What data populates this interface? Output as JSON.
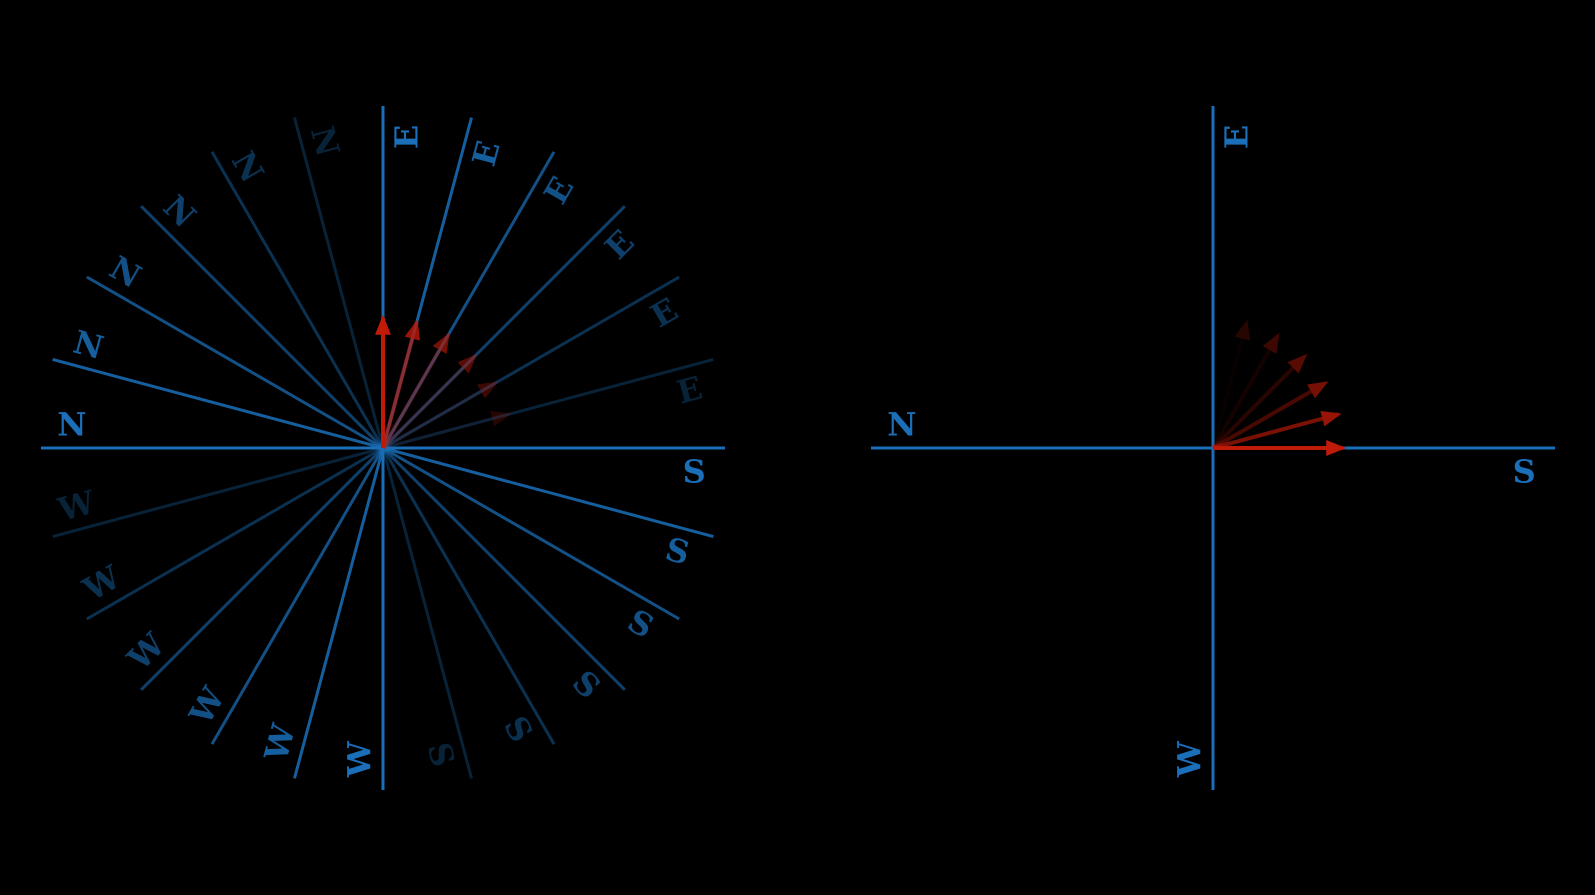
{
  "colors": {
    "background": "#000000",
    "axis": "#1a6fb8",
    "vector": "#c01a08"
  },
  "left_diagram": {
    "axes": [
      {
        "angle_deg": 0,
        "labels": [
          "E",
          "W"
        ],
        "opacity": 1.0
      },
      {
        "angle_deg": 15,
        "labels": [
          "E",
          "W"
        ],
        "opacity": 0.86
      },
      {
        "angle_deg": 30,
        "labels": [
          "E",
          "W"
        ],
        "opacity": 0.72
      },
      {
        "angle_deg": 45,
        "labels": [
          "E",
          "W"
        ],
        "opacity": 0.58
      },
      {
        "angle_deg": 60,
        "labels": [
          "E",
          "W"
        ],
        "opacity": 0.44
      },
      {
        "angle_deg": 75,
        "labels": [
          "E",
          "W"
        ],
        "opacity": 0.3
      },
      {
        "angle_deg": 90,
        "labels": [
          "S",
          "N"
        ],
        "opacity": 1.0
      },
      {
        "angle_deg": 105,
        "labels": [
          "S",
          "N"
        ],
        "opacity": 0.86
      },
      {
        "angle_deg": 120,
        "labels": [
          "S",
          "N"
        ],
        "opacity": 0.72
      },
      {
        "angle_deg": 135,
        "labels": [
          "S",
          "N"
        ],
        "opacity": 0.58
      },
      {
        "angle_deg": 150,
        "labels": [
          "S",
          "N"
        ],
        "opacity": 0.44
      },
      {
        "angle_deg": 165,
        "labels": [
          "S",
          "N"
        ],
        "opacity": 0.3
      }
    ],
    "vectors": [
      {
        "angle_deg": 0,
        "opacity": 1.0
      },
      {
        "angle_deg": 15,
        "opacity": 0.8
      },
      {
        "angle_deg": 30,
        "opacity": 0.62
      },
      {
        "angle_deg": 45,
        "opacity": 0.46
      },
      {
        "angle_deg": 60,
        "opacity": 0.32
      },
      {
        "angle_deg": 75,
        "opacity": 0.2
      }
    ]
  },
  "right_diagram": {
    "axes": [
      {
        "angle_deg": 0,
        "labels": [
          "E",
          "W"
        ],
        "opacity": 1.0
      },
      {
        "angle_deg": 90,
        "labels": [
          "S",
          "N"
        ],
        "opacity": 1.0
      }
    ],
    "vectors": [
      {
        "angle_deg": 15,
        "opacity": 0.2
      },
      {
        "angle_deg": 30,
        "opacity": 0.32
      },
      {
        "angle_deg": 45,
        "opacity": 0.46
      },
      {
        "angle_deg": 60,
        "opacity": 0.62
      },
      {
        "angle_deg": 75,
        "opacity": 0.8
      },
      {
        "angle_deg": 90,
        "opacity": 1.0
      }
    ]
  }
}
